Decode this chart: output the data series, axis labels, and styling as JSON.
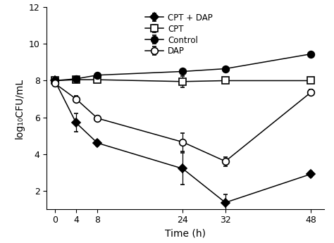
{
  "time": [
    0,
    4,
    8,
    24,
    32,
    48
  ],
  "cpt_dap": {
    "y": [
      8.0,
      5.7,
      4.6,
      3.2,
      1.35,
      2.9
    ],
    "yerr": [
      0.1,
      0.5,
      0.15,
      0.85,
      0.45,
      0.15
    ],
    "label": "CPT + DAP",
    "marker": "D",
    "fillstyle": "full",
    "color": "#000000"
  },
  "cpt": {
    "y": [
      8.0,
      8.05,
      8.05,
      7.95,
      8.0,
      8.0
    ],
    "yerr": [
      0.08,
      0.1,
      0.08,
      0.3,
      0.1,
      0.08
    ],
    "label": "CPT",
    "marker": "s",
    "fillstyle": "none",
    "color": "#000000"
  },
  "control": {
    "y": [
      8.0,
      8.1,
      8.3,
      8.5,
      8.65,
      9.45
    ],
    "yerr": [
      0.08,
      0.1,
      0.08,
      0.08,
      0.1,
      0.08
    ],
    "label": "Control",
    "marker": "o",
    "fillstyle": "full",
    "color": "#000000"
  },
  "dap": {
    "y": [
      7.85,
      7.0,
      5.95,
      4.65,
      3.6,
      7.35
    ],
    "yerr": [
      0.08,
      0.18,
      0.12,
      0.5,
      0.25,
      0.15
    ],
    "label": "DAP",
    "marker": "o",
    "fillstyle": "none",
    "color": "#000000"
  },
  "xlabel": "Time (h)",
  "ylabel": "log₁₀CFU/mL",
  "xlim": [
    -1.5,
    50.5
  ],
  "ylim": [
    1,
    12
  ],
  "yticks": [
    2,
    4,
    6,
    8,
    10,
    12
  ],
  "xticks": [
    0,
    4,
    8,
    24,
    32,
    48
  ],
  "background_color": "#ffffff",
  "legend_order": [
    "cpt_dap",
    "cpt",
    "control",
    "dap"
  ]
}
